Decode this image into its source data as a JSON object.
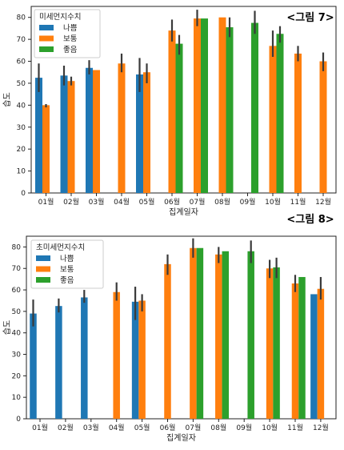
{
  "colors": {
    "나쁨": "#1f77b4",
    "보통": "#ff7f0e",
    "좋음": "#2ca02c",
    "errbar": "#3a3a3a"
  },
  "chart_data": [
    {
      "type": "bar",
      "caption": "<그림 7>",
      "xlabel": "집계일자",
      "ylabel": "습도",
      "ylim": [
        0,
        85
      ],
      "yticks": [
        0,
        10,
        20,
        30,
        40,
        50,
        60,
        70,
        80
      ],
      "categories": [
        "01월",
        "02월",
        "03월",
        "04월",
        "05월",
        "06월",
        "07월",
        "08월",
        "09월",
        "10월",
        "11월",
        "12월"
      ],
      "legend": {
        "title": "미세먼지수치",
        "position": "top-left"
      },
      "series": [
        {
          "name": "나쁨",
          "values": [
            52.5,
            53.5,
            57,
            null,
            54,
            null,
            null,
            null,
            null,
            null,
            null,
            null
          ],
          "err": [
            [
              46,
              59
            ],
            [
              49,
              58
            ],
            [
              54,
              60.5
            ],
            null,
            [
              46,
              61.5
            ],
            null,
            null,
            null,
            null,
            null,
            null,
            null
          ]
        },
        {
          "name": "보통",
          "values": [
            40,
            51,
            56,
            59,
            55,
            74,
            79.5,
            80,
            null,
            67,
            63.5,
            60
          ],
          "err": [
            [
              39,
              40.5
            ],
            [
              49,
              53
            ],
            null,
            [
              55,
              63.5
            ],
            [
              50,
              59
            ],
            [
              69,
              79
            ],
            [
              76,
              83.5
            ],
            null,
            null,
            [
              62,
              74
            ],
            [
              60,
              67
            ],
            [
              55.5,
              64
            ]
          ]
        },
        {
          "name": "좋음",
          "values": [
            null,
            null,
            null,
            null,
            null,
            68,
            79.5,
            75.5,
            77.5,
            72.5,
            null,
            null
          ],
          "err": [
            null,
            null,
            null,
            null,
            null,
            [
              63,
              72
            ],
            null,
            [
              71,
              80
            ],
            [
              72.5,
              83
            ],
            [
              68.5,
              76
            ],
            null,
            null
          ]
        }
      ]
    },
    {
      "type": "bar",
      "caption": "<그림 8>",
      "xlabel": "집계일자",
      "ylabel": "습도",
      "ylim": [
        0,
        85
      ],
      "yticks": [
        0,
        10,
        20,
        30,
        40,
        50,
        60,
        70,
        80
      ],
      "categories": [
        "01월",
        "02월",
        "03월",
        "04월",
        "05월",
        "06월",
        "07월",
        "08월",
        "09월",
        "10월",
        "11월",
        "12월"
      ],
      "legend": {
        "title": "초미세먼지수치",
        "position": "top-left"
      },
      "series": [
        {
          "name": "나쁨",
          "values": [
            49,
            52.5,
            56.5,
            null,
            54.5,
            null,
            null,
            null,
            null,
            null,
            null,
            58
          ],
          "err": [
            [
              43,
              55.5
            ],
            [
              49.5,
              56
            ],
            [
              54,
              60
            ],
            null,
            [
              46,
              61.5
            ],
            null,
            null,
            null,
            null,
            null,
            null,
            null
          ]
        },
        {
          "name": "보통",
          "values": [
            null,
            null,
            null,
            59,
            55,
            72,
            79.5,
            76.5,
            null,
            70,
            63,
            60.5
          ],
          "err": [
            null,
            null,
            null,
            [
              55,
              63.5
            ],
            [
              50,
              58
            ],
            [
              67,
              76.5
            ],
            [
              75,
              84
            ],
            [
              72.5,
              80
            ],
            null,
            [
              65.5,
              74
            ],
            [
              59,
              67
            ],
            [
              55.5,
              66
            ]
          ]
        },
        {
          "name": "좋음",
          "values": [
            null,
            null,
            null,
            null,
            null,
            null,
            79.5,
            78,
            78,
            70.5,
            66,
            null
          ],
          "err": [
            null,
            null,
            null,
            null,
            null,
            null,
            null,
            null,
            [
              72.5,
              83
            ],
            [
              65.5,
              75
            ],
            null,
            null
          ]
        }
      ]
    }
  ]
}
